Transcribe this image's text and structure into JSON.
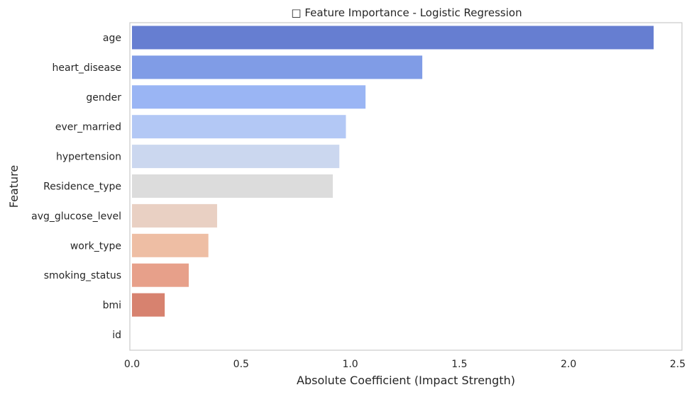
{
  "chart_data": {
    "type": "bar",
    "orientation": "horizontal",
    "title": "□ Feature Importance - Logistic Regression",
    "xlabel": "Absolute Coefficient (Impact Strength)",
    "ylabel": "Feature",
    "xlim": [
      0,
      2.5
    ],
    "xticks": [
      0.0,
      0.5,
      1.0,
      1.5,
      2.0,
      2.5
    ],
    "xtick_labels": [
      "0.0",
      "0.5",
      "1.0",
      "1.5",
      "2.0",
      "2.5"
    ],
    "grid": false,
    "categories": [
      "age",
      "heart_disease",
      "gender",
      "ever_married",
      "hypertension",
      "Residence_type",
      "avg_glucose_level",
      "work_type",
      "smoking_status",
      "bmi",
      "id"
    ],
    "values": [
      2.39,
      1.33,
      1.07,
      0.98,
      0.95,
      0.92,
      0.39,
      0.35,
      0.26,
      0.15,
      0.0
    ],
    "colors": [
      "#667ed1",
      "#809ce6",
      "#9ab5f4",
      "#b3c8f5",
      "#cbd7ef",
      "#dcdcdc",
      "#e9d0c3",
      "#eebea4",
      "#e7a08a",
      "#d7826f",
      "#c86452"
    ],
    "palette": "coolwarm"
  }
}
